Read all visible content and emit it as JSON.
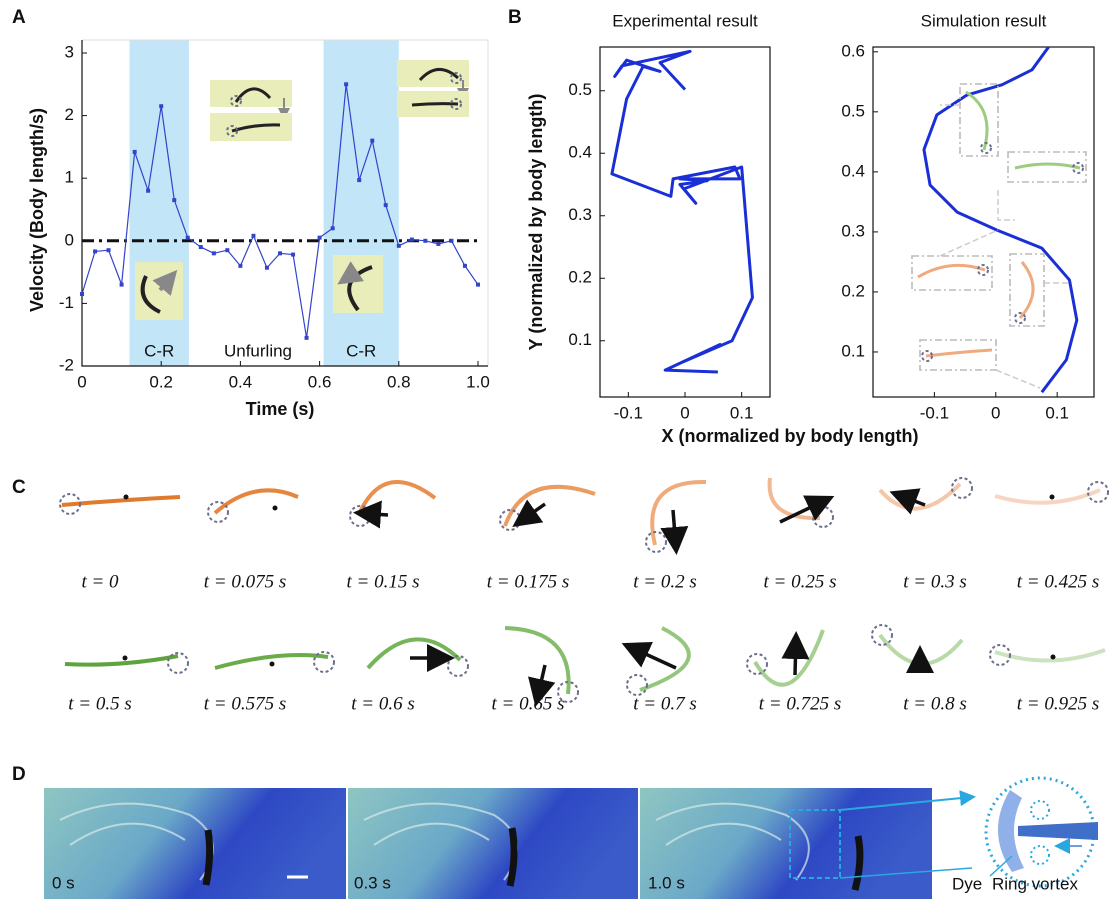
{
  "panel_labels": [
    "A",
    "B",
    "C",
    "D"
  ],
  "chart_data": [
    {
      "type": "line",
      "xlabel": "Time (s)",
      "ylabel": "Velocity (Body length/s)",
      "color": "#3344cc",
      "markers": true,
      "x": [
        0,
        0.033,
        0.067,
        0.1,
        0.133,
        0.167,
        0.2,
        0.233,
        0.267,
        0.3,
        0.333,
        0.367,
        0.4,
        0.433,
        0.467,
        0.5,
        0.533,
        0.567,
        0.6,
        0.633,
        0.667,
        0.7,
        0.733,
        0.767,
        0.8,
        0.833,
        0.867,
        0.9,
        0.933,
        0.967,
        1.0
      ],
      "values": [
        -0.85,
        -0.17,
        -0.15,
        -0.7,
        1.42,
        0.8,
        2.15,
        0.65,
        0.05,
        -0.1,
        -0.2,
        -0.15,
        -0.4,
        0.08,
        -0.43,
        -0.2,
        -0.22,
        -1.55,
        0.05,
        0.2,
        2.5,
        0.97,
        1.6,
        0.57,
        -0.08,
        0.02,
        0,
        -0.05,
        0,
        -0.4,
        -0.7
      ],
      "xlim": [
        0,
        1
      ],
      "ylim": [
        -2,
        3
      ],
      "xticks": [
        0,
        0.2,
        0.4,
        0.6,
        0.8,
        {
          "value": 1,
          "label": "1.0"
        }
      ],
      "yticks": [
        -2,
        -1,
        0,
        1,
        2,
        3
      ],
      "hline": 0,
      "shaded_regions": [
        {
          "from": 0.12,
          "to": 0.27,
          "label": "C-R"
        },
        {
          "from": 0.61,
          "to": 0.8,
          "label": "C-R"
        }
      ],
      "annotation": "Unfurling"
    },
    {
      "type": "line",
      "title": "Experimental result",
      "xlabel": "X (normalized by body length)",
      "ylabel": "Y (normalized by body length)",
      "color": "#1a2fd6",
      "x": [
        0.0,
        -0.044,
        0.009,
        -0.111,
        -0.124,
        -0.103,
        -0.044,
        -0.074,
        -0.103,
        -0.129,
        -0.025,
        -0.021,
        0.088,
        0.097,
        -0.009,
        0.039,
        -0.009,
        0.019,
        -0.002,
        0.1,
        0.119,
        0.083,
        -0.004,
        0.062,
        -0.035,
        0.058
      ],
      "values": [
        0.502,
        0.545,
        0.563,
        0.54,
        0.523,
        0.549,
        0.531,
        0.539,
        0.487,
        0.367,
        0.331,
        0.359,
        0.378,
        0.359,
        0.359,
        0.356,
        0.35,
        0.32,
        0.343,
        0.378,
        0.169,
        0.1,
        0.066,
        0.094,
        0.053,
        0.05
      ],
      "xlim": [
        -0.15,
        0.15
      ],
      "ylim": [
        0.01,
        0.57
      ],
      "xticks": [
        -0.1,
        0,
        0.1
      ],
      "yticks": [
        0.1,
        0.2,
        0.3,
        0.4,
        0.5
      ]
    },
    {
      "type": "line",
      "title": "Simulation result",
      "color": "#1a2fd6",
      "x": [
        0.086,
        0.059,
        0.01,
        -0.047,
        -0.096,
        -0.117,
        -0.107,
        -0.063,
        0.002,
        0.075,
        0.12,
        0.132,
        0.115,
        0.075
      ],
      "values": [
        0.608,
        0.57,
        0.545,
        0.528,
        0.495,
        0.437,
        0.378,
        0.333,
        0.303,
        0.273,
        0.22,
        0.153,
        0.087,
        0.033
      ],
      "xlim": [
        -0.2,
        0.16
      ],
      "ylim": [
        0.025,
        0.608
      ],
      "xticks": [
        -0.1,
        0,
        0.1
      ],
      "yticks": [
        0.1,
        0.2,
        0.3,
        0.4,
        0.5,
        0.6
      ]
    }
  ],
  "panel_c": {
    "top_row": [
      "t = 0",
      "t = 0.075 s",
      "t = 0.15 s",
      "t = 0.175 s",
      "t = 0.2 s",
      "t = 0.25 s",
      "t = 0.3 s",
      "t = 0.425 s"
    ],
    "bottom_row": [
      "t = 0.5 s",
      "t = 0.575 s",
      "t = 0.6 s",
      "t = 0.65 s",
      "t = 0.7 s",
      "t = 0.725 s",
      "t = 0.8 s",
      "t = 0.925 s"
    ]
  },
  "panel_d": {
    "frames": [
      "0 s",
      "0.3 s",
      "1.0 s"
    ],
    "dye_label": "Dye",
    "vortex_label": "Ring vortex"
  }
}
